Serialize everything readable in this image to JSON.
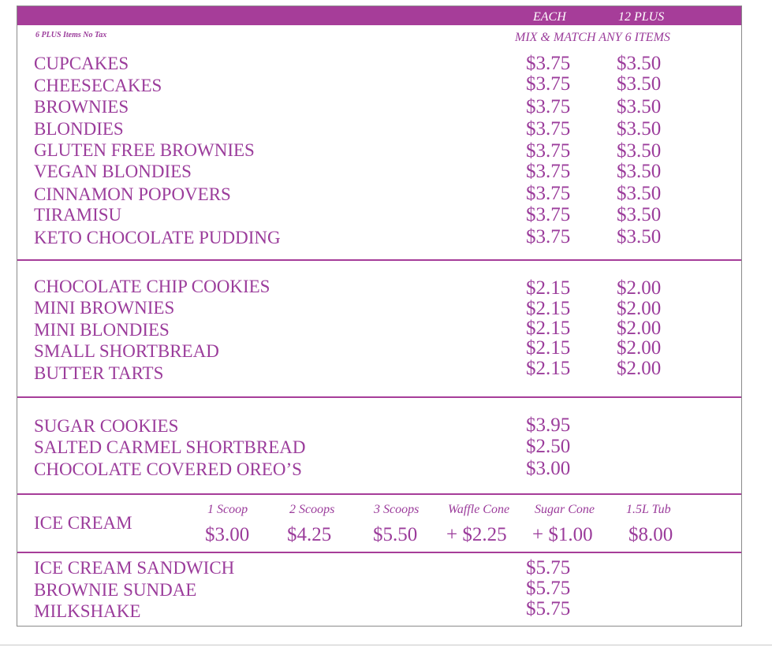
{
  "header": {
    "each_label": "EACH",
    "plus_label": "12 PLUS",
    "no_tax_note": "6 PLUS Items No Tax",
    "mix_match_note": "MIX & MATCH ANY 6 ITEMS"
  },
  "section1": {
    "items": [
      {
        "name": "CUPCAKES",
        "each": "$3.75",
        "plus": "$3.50"
      },
      {
        "name": "CHEESECAKES",
        "each": "$3.75",
        "plus": "$3.50"
      },
      {
        "name": "BROWNIES",
        "each": "$3.75",
        "plus": "$3.50"
      },
      {
        "name": "BLONDIES",
        "each": "$3.75",
        "plus": "$3.50"
      },
      {
        "name": "GLUTEN FREE BROWNIES",
        "each": "$3.75",
        "plus": "$3.50"
      },
      {
        "name": "VEGAN BLONDIES",
        "each": "$3.75",
        "plus": "$3.50"
      },
      {
        "name": "CINNAMON POPOVERS",
        "each": "$3.75",
        "plus": "$3.50"
      },
      {
        "name": "TIRAMISU",
        "each": "$3.75",
        "plus": "$3.50"
      },
      {
        "name": "KETO CHOCOLATE PUDDING",
        "each": "$3.75",
        "plus": "$3.50"
      }
    ]
  },
  "section2": {
    "items": [
      {
        "name": "CHOCOLATE CHIP COOKIES",
        "each": "$2.15",
        "plus": "$2.00"
      },
      {
        "name": "MINI BROWNIES",
        "each": "$2.15",
        "plus": "$2.00"
      },
      {
        "name": "MINI BLONDIES",
        "each": "$2.15",
        "plus": "$2.00"
      },
      {
        "name": "SMALL SHORTBREAD",
        "each": "$2.15",
        "plus": "$2.00"
      },
      {
        "name": "BUTTER TARTS",
        "each": "$2.15",
        "plus": "$2.00"
      }
    ]
  },
  "section3": {
    "items": [
      {
        "name": "SUGAR COOKIES",
        "each": "$3.95"
      },
      {
        "name": "SALTED CARMEL SHORTBREAD",
        "each": "$2.50"
      },
      {
        "name": "CHOCOLATE COVERED OREO’S",
        "each": "$3.00"
      }
    ]
  },
  "icecream": {
    "label": "ICE CREAM",
    "options": [
      {
        "name": "1 Scoop",
        "price": "$3.00"
      },
      {
        "name": "2 Scoops",
        "price": "$4.25"
      },
      {
        "name": "3 Scoops",
        "price": "$5.50"
      },
      {
        "name": "Waffle Cone",
        "price": "+ $2.25"
      },
      {
        "name": "Sugar Cone",
        "price": "+ $1.00"
      },
      {
        "name": "1.5L Tub",
        "price": "$8.00"
      }
    ]
  },
  "section5": {
    "items": [
      {
        "name": "ICE CREAM SANDWICH",
        "each": "$5.75"
      },
      {
        "name": "BROWNIE SUNDAE",
        "each": "$5.75"
      },
      {
        "name": "MILKSHAKE",
        "each": "$5.75"
      }
    ]
  }
}
